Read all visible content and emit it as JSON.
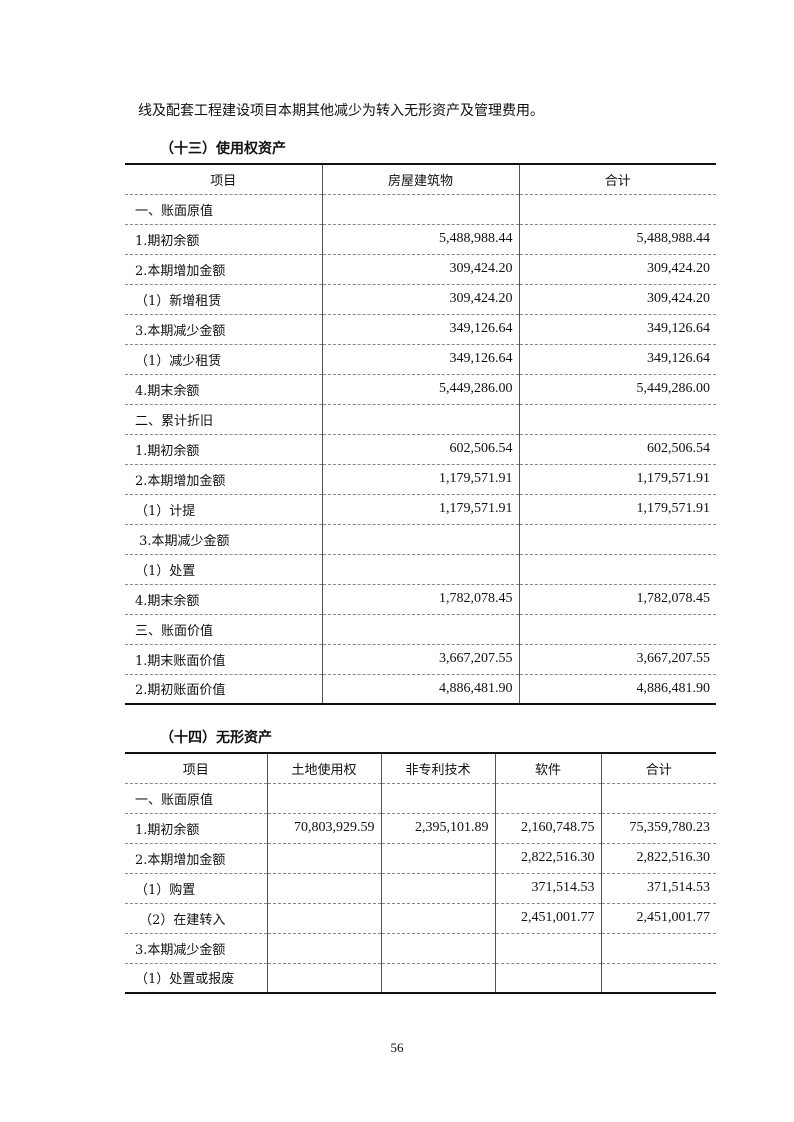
{
  "intro_text": "线及配套工程建设项目本期其他减少为转入无形资产及管理费用。",
  "right_of_use": {
    "title": "（十三）使用权资产",
    "headers": [
      "项目",
      "房屋建筑物",
      "合计"
    ],
    "rows": [
      [
        "一、账面原值",
        "",
        ""
      ],
      [
        "1.期初余额",
        "5,488,988.44",
        "5,488,988.44"
      ],
      [
        "2.本期增加金额",
        "309,424.20",
        "309,424.20"
      ],
      [
        "（1）新增租赁",
        "309,424.20",
        "309,424.20"
      ],
      [
        "3.本期减少金额",
        "349,126.64",
        "349,126.64"
      ],
      [
        "（1）减少租赁",
        "349,126.64",
        "349,126.64"
      ],
      [
        "4.期末余额",
        "5,449,286.00",
        "5,449,286.00"
      ],
      [
        "二、累计折旧",
        "",
        ""
      ],
      [
        "1.期初余额",
        "602,506.54",
        "602,506.54"
      ],
      [
        "2.本期增加金额",
        "1,179,571.91",
        "1,179,571.91"
      ],
      [
        "（1）计提",
        "1,179,571.91",
        "1,179,571.91"
      ],
      [
        " 3.本期减少金额",
        "",
        ""
      ],
      [
        "（1）处置",
        "",
        ""
      ],
      [
        "4.期末余额",
        "1,782,078.45",
        "1,782,078.45"
      ],
      [
        "三、账面价值",
        "",
        ""
      ],
      [
        "1.期末账面价值",
        "3,667,207.55",
        "3,667,207.55"
      ],
      [
        "2.期初账面价值",
        "4,886,481.90",
        "4,886,481.90"
      ]
    ]
  },
  "intangible": {
    "title": "（十四）无形资产",
    "headers": [
      "项目",
      "土地使用权",
      "非专利技术",
      "软件",
      "合计"
    ],
    "rows": [
      [
        "一、账面原值",
        "",
        "",
        "",
        ""
      ],
      [
        "1.期初余额",
        "70,803,929.59",
        "2,395,101.89",
        "2,160,748.75",
        "75,359,780.23"
      ],
      [
        "2.本期增加金额",
        "",
        "",
        "2,822,516.30",
        "2,822,516.30"
      ],
      [
        "（1）购置",
        "",
        "",
        "371,514.53",
        "371,514.53"
      ],
      [
        " （2）在建转入",
        "",
        "",
        "2,451,001.77",
        "2,451,001.77"
      ],
      [
        "3.本期减少金额",
        "",
        "",
        "",
        ""
      ],
      [
        "（1）处置或报废",
        "",
        "",
        "",
        ""
      ]
    ]
  },
  "page_number": "56"
}
